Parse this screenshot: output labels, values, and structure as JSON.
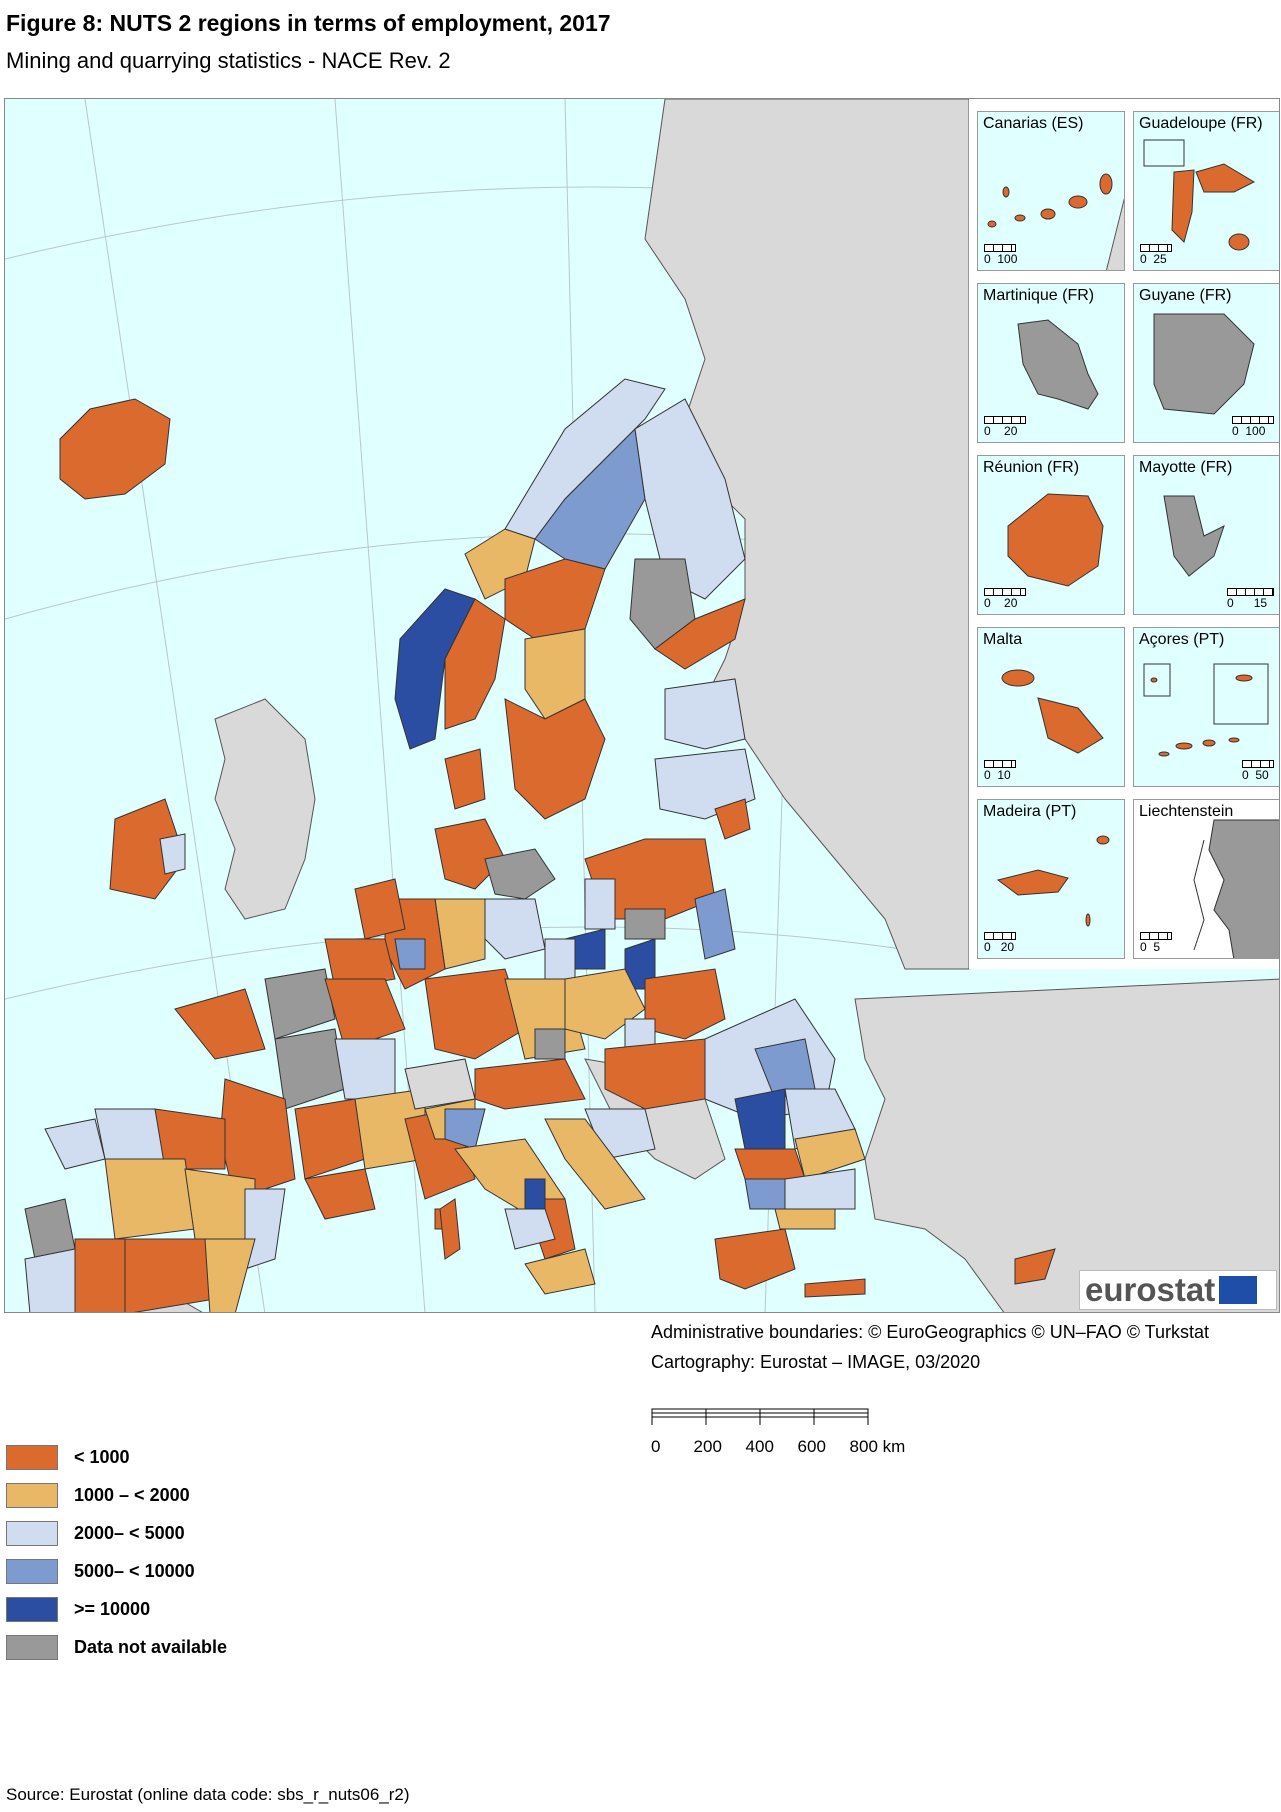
{
  "header": {
    "title": "Figure 8: NUTS 2 regions in terms of employment, 2017",
    "subtitle": "Mining and quarrying statistics - NACE Rev. 2"
  },
  "colors": {
    "sea": "#e0ffff",
    "non_eu": "#d9d9d9",
    "lt_1000": "#db6a2e",
    "1000_2000": "#e9b866",
    "2000_5000": "#d0dcf0",
    "5000_10000": "#7d9bcf",
    "ge_10000": "#2b4ea2",
    "na": "#999999"
  },
  "insets": [
    {
      "label": "Canarias (ES)",
      "scale_left": "0",
      "scale_right": "100"
    },
    {
      "label": "Guadeloupe (FR)",
      "scale_left": "0",
      "scale_right": "25"
    },
    {
      "label": "Martinique (FR)",
      "scale_left": "0",
      "scale_right": "20"
    },
    {
      "label": "Guyane (FR)",
      "scale_left": "0",
      "scale_right": "100"
    },
    {
      "label": "Réunion (FR)",
      "scale_left": "0",
      "scale_right": "20"
    },
    {
      "label": "Mayotte (FR)",
      "scale_left": "0",
      "scale_right": "15"
    },
    {
      "label": "Malta",
      "scale_left": "0",
      "scale_right": "10"
    },
    {
      "label": "Açores (PT)",
      "scale_left": "0",
      "scale_right": "50"
    },
    {
      "label": "Madeira (PT)",
      "scale_left": "0",
      "scale_right": "20"
    },
    {
      "label": "Liechtenstein",
      "scale_left": "0",
      "scale_right": "5"
    }
  ],
  "logo": {
    "text": "eurostat"
  },
  "credits": {
    "boundaries": "Administrative boundaries: © EuroGeographics © UN–FAO © Turkstat",
    "cartography": "Cartography: Eurostat – IMAGE, 03/2020"
  },
  "scalebar": {
    "labels": [
      "0",
      "200",
      "400",
      "600",
      "800 km"
    ]
  },
  "legend": [
    {
      "label": "< 1000",
      "color": "#db6a2e"
    },
    {
      "label": "1000 – < 2000",
      "color": "#e9b866"
    },
    {
      "label": "2000– < 5000",
      "color": "#d0dcf0"
    },
    {
      "label": "5000– < 10000",
      "color": "#7d9bcf"
    },
    {
      "label": ">= 10000",
      "color": "#2b4ea2"
    },
    {
      "label": "Data not available",
      "color": "#999999"
    }
  ],
  "source": "Source: Eurostat (online data code: sbs_r_nuts06_r2)"
}
